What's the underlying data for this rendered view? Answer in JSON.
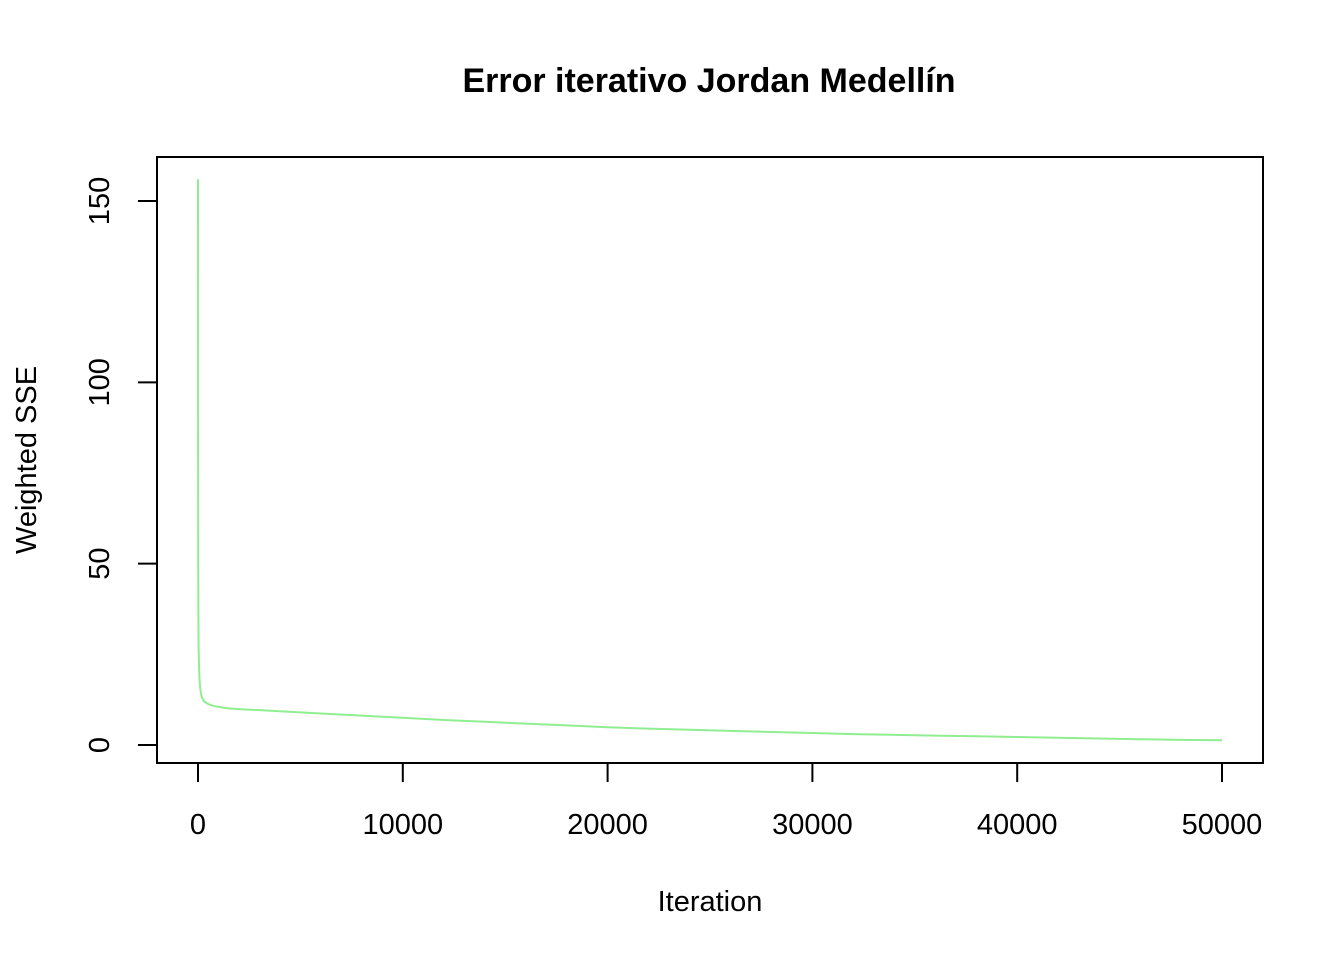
{
  "chart_data": {
    "type": "line",
    "title": "Error iterativo Jordan Medellín",
    "xlabel": "Iteration",
    "ylabel": "Weighted SSE",
    "xlim": [
      -2000,
      52000
    ],
    "ylim": [
      -5,
      162
    ],
    "x_ticks": [
      0,
      10000,
      20000,
      30000,
      40000,
      50000
    ],
    "x_tick_labels": [
      "0",
      "10000",
      "20000",
      "30000",
      "40000",
      "50000"
    ],
    "y_ticks": [
      0,
      50,
      100,
      150
    ],
    "y_tick_labels": [
      "0",
      "50",
      "100",
      "150"
    ],
    "grid": false,
    "legend": "none",
    "line_color": "#90EE90",
    "series": [
      {
        "x": [
          0,
          2,
          5,
          10,
          20,
          30,
          50,
          75,
          100,
          150,
          200,
          300,
          500,
          750,
          1000,
          1500,
          2000,
          3000,
          4000,
          5000,
          6000,
          8000,
          10000,
          12000,
          14000,
          16000,
          18000,
          20000,
          22000,
          24000,
          26000,
          28000,
          30000,
          32000,
          34000,
          36000,
          38000,
          40000,
          42000,
          44000,
          46000,
          48000,
          50000
        ],
        "y": [
          156,
          120,
          80,
          50,
          35,
          27,
          22,
          18,
          16,
          14,
          13,
          12,
          11.3,
          10.8,
          10.5,
          10.1,
          9.9,
          9.6,
          9.3,
          9.0,
          8.7,
          8.1,
          7.5,
          6.9,
          6.4,
          5.9,
          5.4,
          4.9,
          4.5,
          4.2,
          3.9,
          3.6,
          3.3,
          3.0,
          2.8,
          2.6,
          2.4,
          2.2,
          2.0,
          1.8,
          1.6,
          1.4,
          1.3
        ]
      }
    ]
  }
}
